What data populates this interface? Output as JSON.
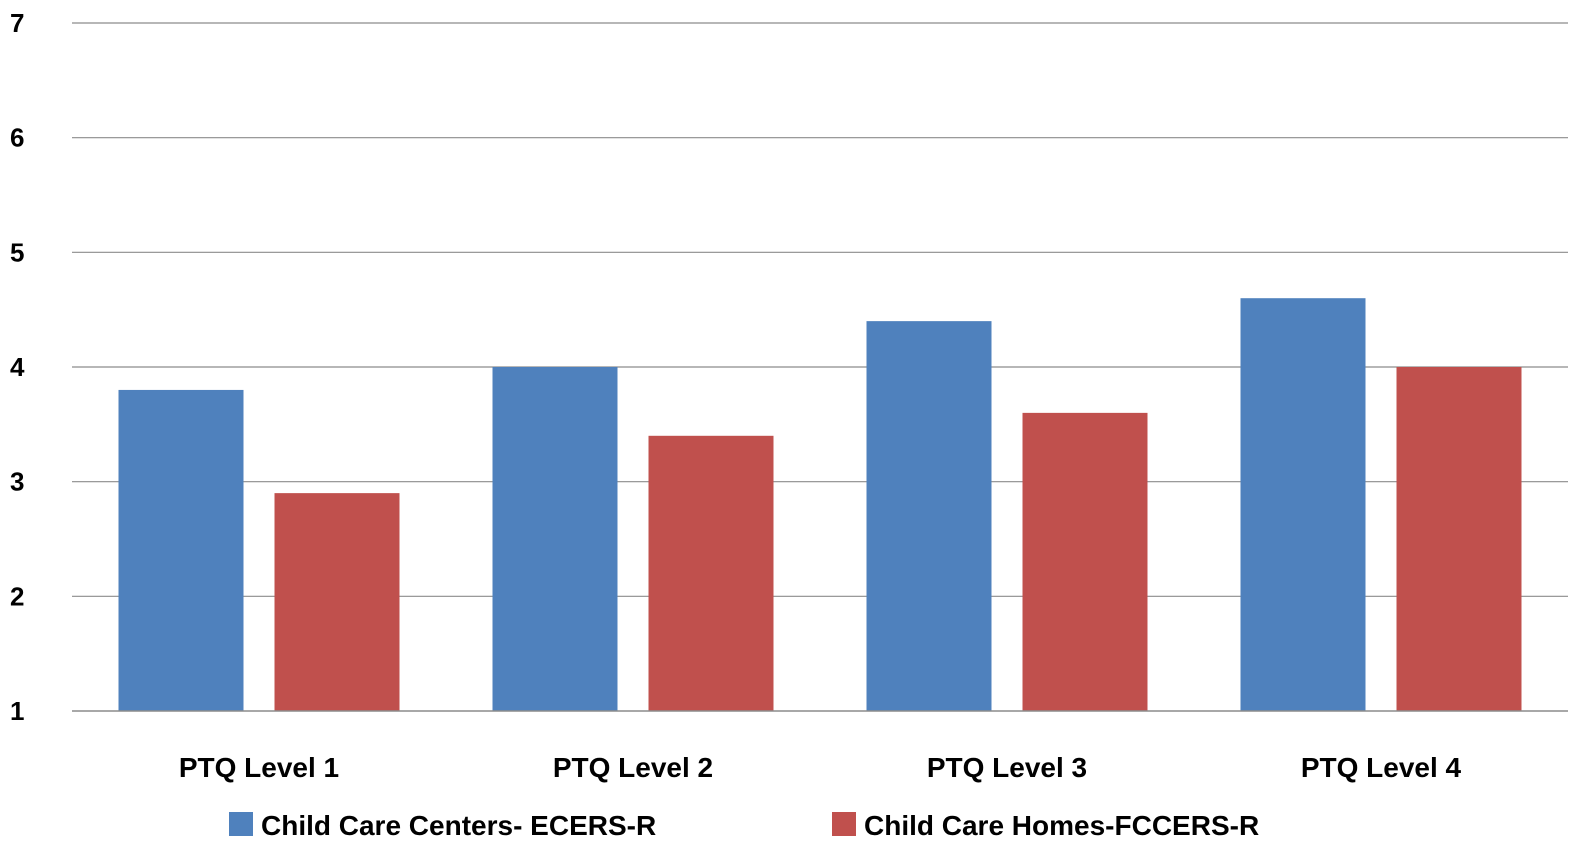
{
  "chart_data": {
    "type": "bar",
    "title": "",
    "xlabel": "",
    "ylabel": "",
    "categories": [
      "PTQ Level 1",
      "PTQ Level 2",
      "PTQ Level 3",
      "PTQ Level 4"
    ],
    "series": [
      {
        "name": "Child Care Centers- ECERS-R",
        "color": "#4F81BD",
        "values": [
          3.8,
          4.0,
          4.4,
          4.6
        ]
      },
      {
        "name": "Child Care Homes-FCCERS-R",
        "color": "#C0504D",
        "values": [
          2.9,
          3.4,
          3.6,
          4.0
        ]
      }
    ],
    "ylim": [
      1,
      7
    ],
    "yticks": [
      1,
      2,
      3,
      4,
      5,
      6,
      7
    ],
    "grid": true,
    "legend": "bottom"
  }
}
